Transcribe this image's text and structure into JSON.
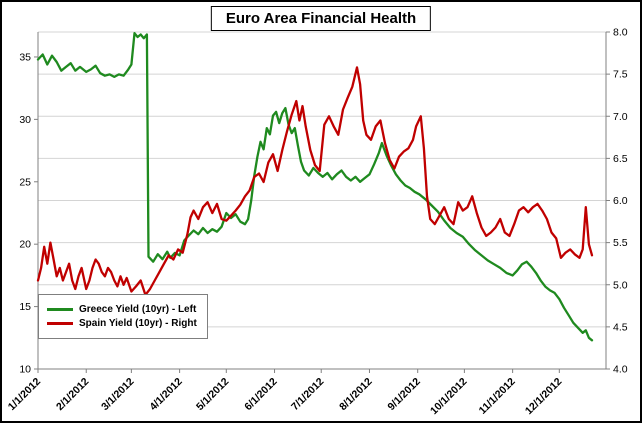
{
  "title": "Euro Area Financial Health",
  "legend": {
    "items": [
      {
        "label": "Greece Yield (10yr) - Left",
        "color": "#1f8a1f"
      },
      {
        "label": "Spain Yield (10yr) - Right",
        "color": "#c00000"
      }
    ]
  },
  "chart_data": {
    "type": "line",
    "title": "Euro Area Financial Health",
    "x_tick_labels": [
      "1/1/2012",
      "2/1/2012",
      "3/1/2012",
      "4/1/2012",
      "5/1/2012",
      "6/1/2012",
      "7/1/2012",
      "8/1/2012",
      "9/1/2012",
      "10/1/2012",
      "11/1/2012",
      "12/1/2012"
    ],
    "month_starts": [
      0,
      31,
      60,
      91,
      121,
      152,
      182,
      213,
      244,
      274,
      305,
      335
    ],
    "x_domain": [
      0,
      365
    ],
    "left_axis": {
      "min": 10,
      "max": 37,
      "ticks": [
        10,
        15,
        20,
        25,
        30,
        35
      ]
    },
    "right_axis": {
      "min": 4.0,
      "max": 8.0,
      "ticks": [
        4.0,
        4.5,
        5.0,
        5.5,
        6.0,
        6.5,
        7.0,
        7.5,
        8.0
      ]
    },
    "grid_color": "#d4d4d4",
    "axis_color": "#808080",
    "series": [
      {
        "name": "Greece Yield (10yr) - Left",
        "axis": "left",
        "color": "#1f8a1f",
        "points": [
          [
            0,
            34.8
          ],
          [
            3,
            35.2
          ],
          [
            6,
            34.4
          ],
          [
            9,
            35.1
          ],
          [
            12,
            34.6
          ],
          [
            15,
            33.9
          ],
          [
            18,
            34.2
          ],
          [
            21,
            34.5
          ],
          [
            24,
            33.9
          ],
          [
            27,
            34.2
          ],
          [
            31,
            33.8
          ],
          [
            34,
            34.0
          ],
          [
            37,
            34.3
          ],
          [
            40,
            33.7
          ],
          [
            43,
            33.5
          ],
          [
            46,
            33.6
          ],
          [
            49,
            33.4
          ],
          [
            52,
            33.6
          ],
          [
            55,
            33.5
          ],
          [
            58,
            34.0
          ],
          [
            60,
            34.4
          ],
          [
            62,
            36.9
          ],
          [
            64,
            36.6
          ],
          [
            66,
            36.8
          ],
          [
            68,
            36.5
          ],
          [
            70,
            36.8
          ],
          [
            71,
            19.0
          ],
          [
            74,
            18.6
          ],
          [
            77,
            19.2
          ],
          [
            80,
            18.8
          ],
          [
            83,
            19.4
          ],
          [
            85,
            18.9
          ],
          [
            88,
            19.3
          ],
          [
            91,
            19.1
          ],
          [
            94,
            20.3
          ],
          [
            97,
            20.7
          ],
          [
            100,
            21.1
          ],
          [
            103,
            20.8
          ],
          [
            106,
            21.3
          ],
          [
            109,
            20.9
          ],
          [
            112,
            21.2
          ],
          [
            115,
            21.0
          ],
          [
            118,
            21.4
          ],
          [
            121,
            22.5
          ],
          [
            124,
            22.1
          ],
          [
            127,
            22.4
          ],
          [
            130,
            21.8
          ],
          [
            133,
            21.6
          ],
          [
            135,
            22.0
          ],
          [
            137,
            23.5
          ],
          [
            139,
            25.5
          ],
          [
            141,
            27.0
          ],
          [
            143,
            28.2
          ],
          [
            145,
            27.6
          ],
          [
            147,
            29.3
          ],
          [
            149,
            28.8
          ],
          [
            151,
            30.3
          ],
          [
            153,
            30.6
          ],
          [
            155,
            29.7
          ],
          [
            157,
            30.5
          ],
          [
            159,
            30.9
          ],
          [
            161,
            29.6
          ],
          [
            163,
            28.9
          ],
          [
            165,
            29.3
          ],
          [
            167,
            27.9
          ],
          [
            169,
            26.6
          ],
          [
            171,
            25.9
          ],
          [
            174,
            25.5
          ],
          [
            177,
            26.1
          ],
          [
            180,
            25.7
          ],
          [
            183,
            25.4
          ],
          [
            186,
            25.7
          ],
          [
            189,
            25.2
          ],
          [
            192,
            25.6
          ],
          [
            195,
            25.9
          ],
          [
            198,
            25.4
          ],
          [
            201,
            25.1
          ],
          [
            204,
            25.4
          ],
          [
            207,
            25.0
          ],
          [
            210,
            25.3
          ],
          [
            213,
            25.6
          ],
          [
            216,
            26.4
          ],
          [
            219,
            27.3
          ],
          [
            221,
            28.1
          ],
          [
            224,
            27.1
          ],
          [
            227,
            26.3
          ],
          [
            230,
            25.6
          ],
          [
            233,
            25.1
          ],
          [
            236,
            24.7
          ],
          [
            239,
            24.5
          ],
          [
            242,
            24.2
          ],
          [
            245,
            24.0
          ],
          [
            249,
            23.6
          ],
          [
            253,
            23.1
          ],
          [
            257,
            22.6
          ],
          [
            261,
            21.9
          ],
          [
            265,
            21.3
          ],
          [
            269,
            20.9
          ],
          [
            273,
            20.6
          ],
          [
            277,
            20.0
          ],
          [
            281,
            19.5
          ],
          [
            285,
            19.1
          ],
          [
            289,
            18.7
          ],
          [
            293,
            18.4
          ],
          [
            297,
            18.1
          ],
          [
            301,
            17.7
          ],
          [
            305,
            17.5
          ],
          [
            308,
            17.9
          ],
          [
            311,
            18.4
          ],
          [
            314,
            18.6
          ],
          [
            317,
            18.2
          ],
          [
            320,
            17.7
          ],
          [
            323,
            17.1
          ],
          [
            326,
            16.6
          ],
          [
            329,
            16.3
          ],
          [
            332,
            16.1
          ],
          [
            335,
            15.6
          ],
          [
            338,
            14.9
          ],
          [
            341,
            14.3
          ],
          [
            344,
            13.7
          ],
          [
            347,
            13.3
          ],
          [
            350,
            12.9
          ],
          [
            352,
            13.1
          ],
          [
            354,
            12.5
          ],
          [
            356,
            12.3
          ]
        ]
      },
      {
        "name": "Spain Yield (10yr) - Right",
        "axis": "right",
        "color": "#c00000",
        "points": [
          [
            0,
            5.05
          ],
          [
            2,
            5.2
          ],
          [
            4,
            5.45
          ],
          [
            6,
            5.25
          ],
          [
            8,
            5.5
          ],
          [
            10,
            5.3
          ],
          [
            12,
            5.1
          ],
          [
            14,
            5.2
          ],
          [
            16,
            5.05
          ],
          [
            18,
            5.15
          ],
          [
            20,
            5.25
          ],
          [
            22,
            5.05
          ],
          [
            24,
            4.95
          ],
          [
            26,
            5.1
          ],
          [
            28,
            5.2
          ],
          [
            31,
            4.95
          ],
          [
            33,
            5.05
          ],
          [
            35,
            5.2
          ],
          [
            37,
            5.3
          ],
          [
            39,
            5.25
          ],
          [
            41,
            5.15
          ],
          [
            43,
            5.1
          ],
          [
            45,
            5.2
          ],
          [
            47,
            5.15
          ],
          [
            49,
            5.05
          ],
          [
            51,
            4.98
          ],
          [
            53,
            5.1
          ],
          [
            55,
            5.0
          ],
          [
            57,
            5.08
          ],
          [
            60,
            4.92
          ],
          [
            63,
            4.98
          ],
          [
            66,
            5.05
          ],
          [
            69,
            4.88
          ],
          [
            72,
            4.95
          ],
          [
            75,
            5.05
          ],
          [
            78,
            5.15
          ],
          [
            81,
            5.25
          ],
          [
            84,
            5.35
          ],
          [
            87,
            5.3
          ],
          [
            90,
            5.42
          ],
          [
            93,
            5.38
          ],
          [
            96,
            5.6
          ],
          [
            98,
            5.8
          ],
          [
            100,
            5.88
          ],
          [
            103,
            5.78
          ],
          [
            106,
            5.92
          ],
          [
            109,
            5.98
          ],
          [
            112,
            5.85
          ],
          [
            115,
            5.96
          ],
          [
            118,
            5.78
          ],
          [
            121,
            5.76
          ],
          [
            124,
            5.82
          ],
          [
            127,
            5.88
          ],
          [
            130,
            5.95
          ],
          [
            133,
            6.05
          ],
          [
            136,
            6.12
          ],
          [
            139,
            6.28
          ],
          [
            142,
            6.32
          ],
          [
            145,
            6.22
          ],
          [
            148,
            6.45
          ],
          [
            151,
            6.55
          ],
          [
            154,
            6.35
          ],
          [
            157,
            6.6
          ],
          [
            160,
            6.82
          ],
          [
            163,
            7.02
          ],
          [
            166,
            7.18
          ],
          [
            168,
            6.95
          ],
          [
            170,
            7.12
          ],
          [
            172,
            6.88
          ],
          [
            175,
            6.6
          ],
          [
            178,
            6.42
          ],
          [
            181,
            6.35
          ],
          [
            184,
            6.9
          ],
          [
            187,
            7.0
          ],
          [
            190,
            6.88
          ],
          [
            193,
            6.78
          ],
          [
            196,
            7.08
          ],
          [
            199,
            7.22
          ],
          [
            202,
            7.35
          ],
          [
            205,
            7.58
          ],
          [
            207,
            7.38
          ],
          [
            209,
            6.95
          ],
          [
            211,
            6.78
          ],
          [
            214,
            6.72
          ],
          [
            217,
            6.88
          ],
          [
            220,
            6.95
          ],
          [
            223,
            6.68
          ],
          [
            226,
            6.48
          ],
          [
            229,
            6.38
          ],
          [
            232,
            6.52
          ],
          [
            235,
            6.58
          ],
          [
            238,
            6.62
          ],
          [
            241,
            6.72
          ],
          [
            243,
            6.88
          ],
          [
            246,
            7.0
          ],
          [
            248,
            6.62
          ],
          [
            250,
            6.05
          ],
          [
            252,
            5.78
          ],
          [
            255,
            5.72
          ],
          [
            258,
            5.82
          ],
          [
            261,
            5.92
          ],
          [
            264,
            5.78
          ],
          [
            267,
            5.72
          ],
          [
            270,
            5.98
          ],
          [
            273,
            5.88
          ],
          [
            276,
            5.92
          ],
          [
            279,
            6.05
          ],
          [
            282,
            5.85
          ],
          [
            285,
            5.68
          ],
          [
            288,
            5.58
          ],
          [
            291,
            5.62
          ],
          [
            294,
            5.68
          ],
          [
            297,
            5.78
          ],
          [
            300,
            5.62
          ],
          [
            303,
            5.58
          ],
          [
            306,
            5.72
          ],
          [
            309,
            5.88
          ],
          [
            312,
            5.92
          ],
          [
            315,
            5.86
          ],
          [
            318,
            5.92
          ],
          [
            321,
            5.96
          ],
          [
            324,
            5.88
          ],
          [
            327,
            5.78
          ],
          [
            330,
            5.62
          ],
          [
            333,
            5.55
          ],
          [
            336,
            5.32
          ],
          [
            339,
            5.38
          ],
          [
            342,
            5.42
          ],
          [
            345,
            5.36
          ],
          [
            348,
            5.32
          ],
          [
            350,
            5.42
          ],
          [
            352,
            5.92
          ],
          [
            354,
            5.48
          ],
          [
            356,
            5.35
          ]
        ]
      }
    ]
  }
}
